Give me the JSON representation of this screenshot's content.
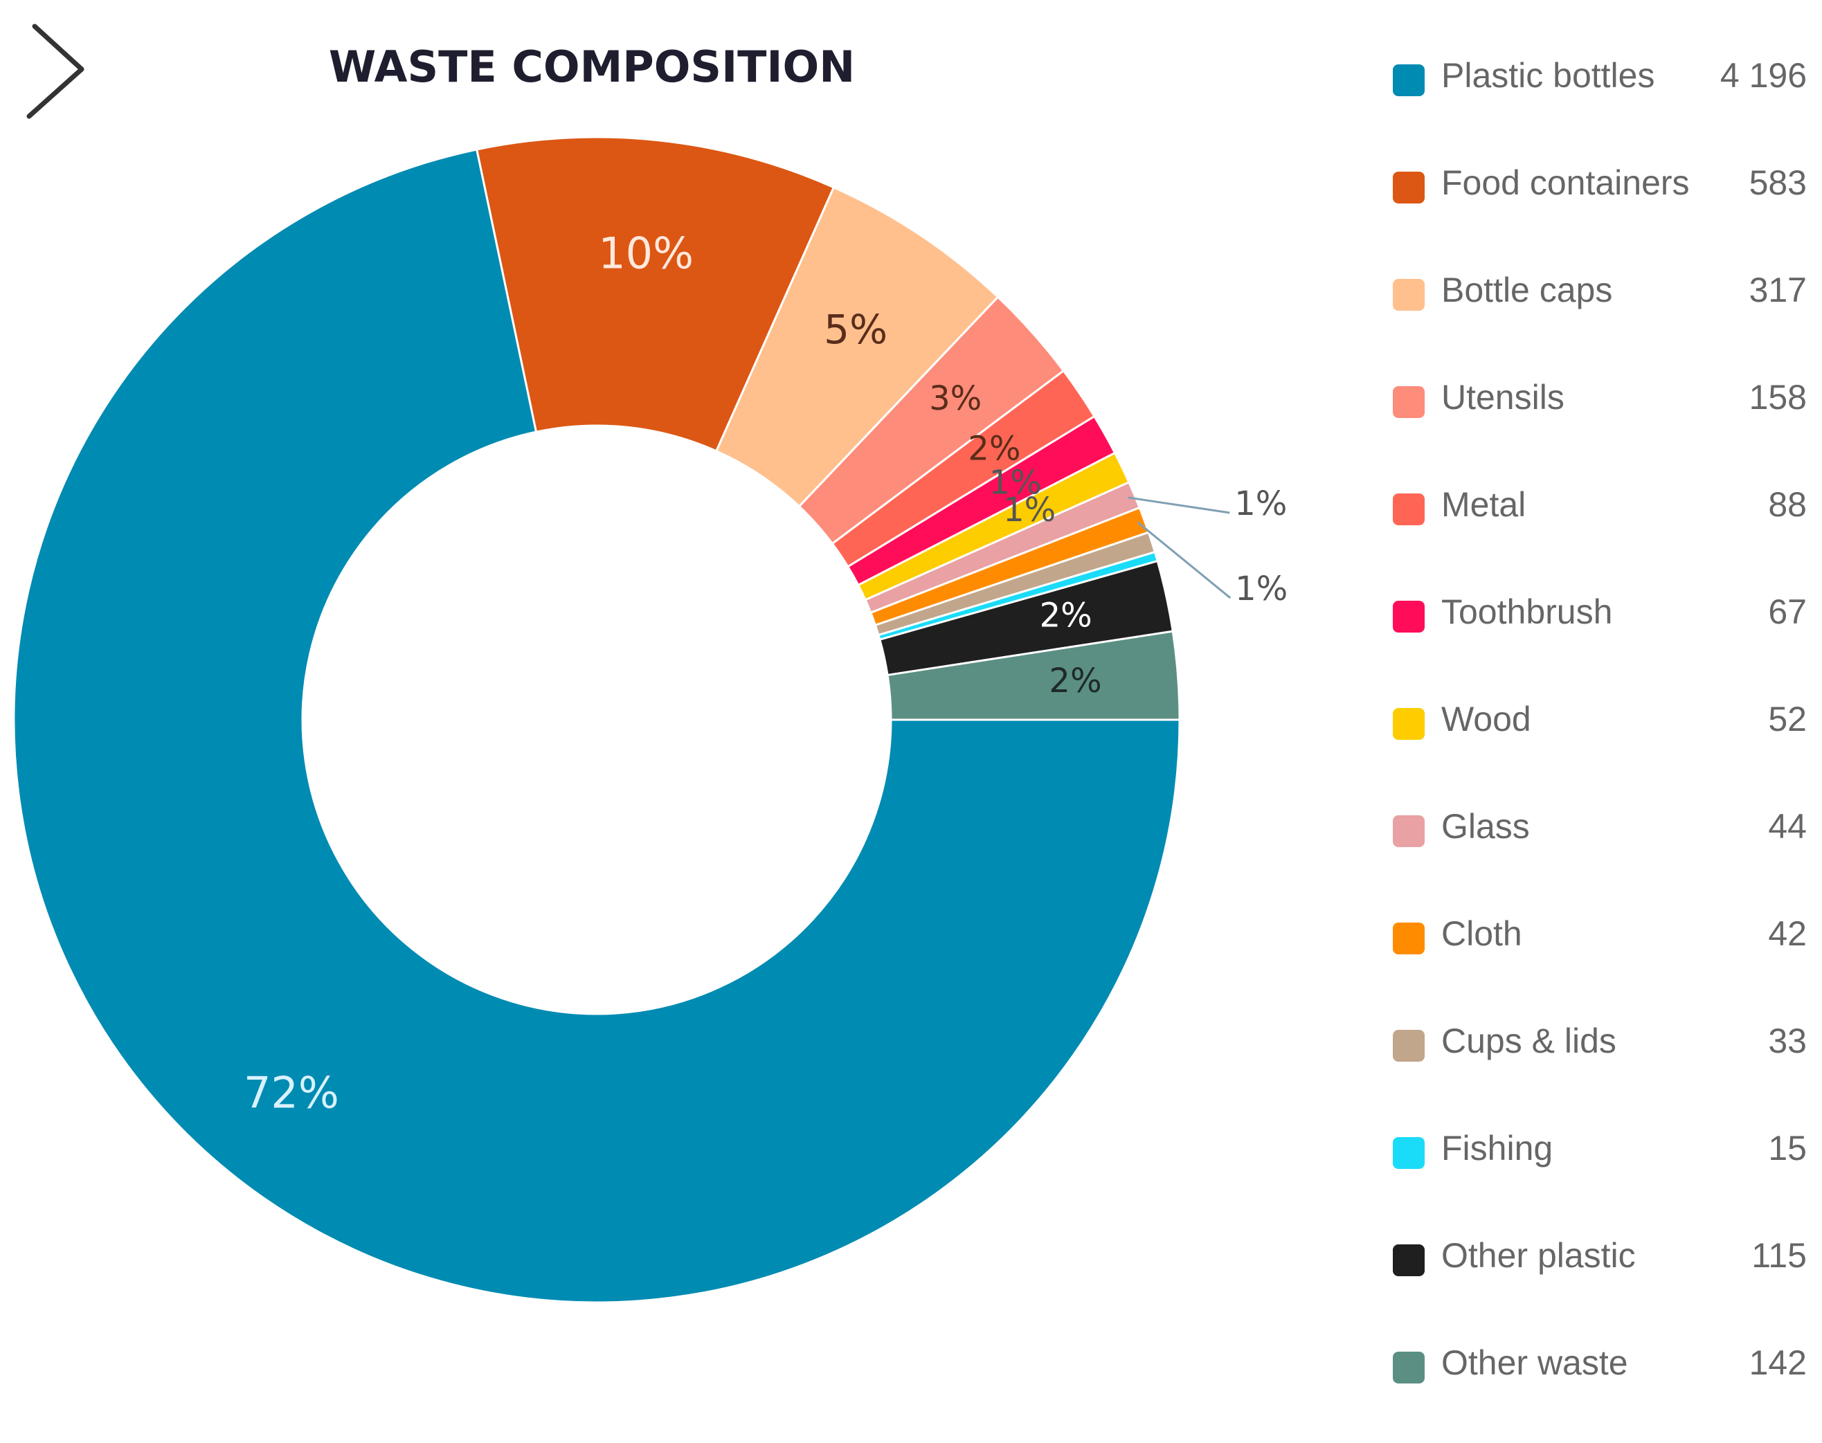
{
  "chart_data": {
    "type": "pie",
    "title": "WASTE COMPOSITION",
    "donut": true,
    "categories": [
      "Plastic bottles",
      "Food containers",
      "Bottle caps",
      "Utensils",
      "Metal",
      "Toothbrush",
      "Wood",
      "Glass",
      "Cloth",
      "Cups & lids",
      "Fishing",
      "Other plastic",
      "Other waste"
    ],
    "values": [
      4196,
      583,
      317,
      158,
      88,
      67,
      52,
      44,
      42,
      33,
      15,
      115,
      142
    ],
    "colors": [
      "#008bb2",
      "#dc5714",
      "#ffc08e",
      "#fe8c7b",
      "#ff6555",
      "#ff0d58",
      "#fdcd00",
      "#e9a1a4",
      "#ff8c00",
      "#c1a68c",
      "#1adcf8",
      "#1f1f1f",
      "#5b8f84"
    ],
    "slice_labels": [
      "72%",
      "10%",
      "5%",
      "3%",
      "2%",
      "1%",
      "1%",
      "1%",
      "1%",
      "",
      "",
      "2%",
      "2%"
    ],
    "slice_label_colors": [
      "#d9f2ff",
      "#ffe9de",
      "#5a2d1a",
      "#5a2d1a",
      "#5a2d1a",
      "#555555",
      "#555555",
      "#555555",
      "#555555",
      "",
      "",
      "#ffffff",
      "#1f2a28"
    ],
    "legend_position": "right",
    "nav_icon": "chevron-right-icon"
  }
}
